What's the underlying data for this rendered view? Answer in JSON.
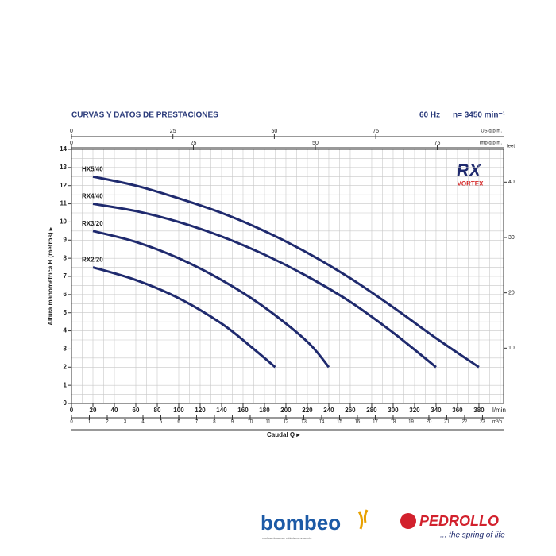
{
  "chart_data": {
    "type": "line",
    "title": "CURVAS Y DATOS DE PRESTACIONES",
    "frequency": "60 Hz",
    "speed": "n= 3450 min⁻¹",
    "y_label": "Altura manométrica H (metros) ▸",
    "x_label": "Caudal Q ▸",
    "x_unit": "l/min",
    "xlim": [
      0,
      403
    ],
    "xticks": [
      0,
      20,
      40,
      60,
      80,
      100,
      120,
      140,
      160,
      180,
      200,
      220,
      240,
      260,
      280,
      300,
      320,
      340,
      360,
      380
    ],
    "ylim": [
      0,
      14
    ],
    "yticks": [
      0,
      1,
      2,
      3,
      4,
      5,
      6,
      7,
      8,
      9,
      10,
      11,
      12,
      13,
      14
    ],
    "grid": true,
    "x_grid_step": 10,
    "y_grid_step": 0.5,
    "m3h_axis": {
      "label": "m³/h",
      "lim": [
        0,
        24.18
      ],
      "ticks": [
        0,
        1,
        2,
        3,
        4,
        5,
        6,
        7,
        8,
        9,
        10,
        11,
        12,
        13,
        14,
        15,
        16,
        17,
        18,
        19,
        20,
        21,
        22,
        23
      ]
    },
    "us_gpm_axis": {
      "label": "US g.p.m.",
      "lim": [
        0,
        106.5
      ],
      "ticks": [
        0,
        25,
        50,
        75
      ]
    },
    "imp_gpm_axis": {
      "label": "Imp g.p.m.",
      "lim": [
        0,
        88.6
      ],
      "ticks": [
        0,
        25,
        50,
        75
      ]
    },
    "feet_axis": {
      "label": "feet",
      "lim": [
        0,
        45.93
      ],
      "ticks": [
        10,
        20,
        30,
        40
      ]
    },
    "series": [
      {
        "name": "HX5/40",
        "color": "#1f2a6e",
        "x": [
          20,
          60,
          100,
          140,
          180,
          220,
          260,
          300,
          340,
          380
        ],
        "values": [
          12.5,
          12.0,
          11.3,
          10.5,
          9.5,
          8.3,
          6.9,
          5.3,
          3.6,
          2.0
        ]
      },
      {
        "name": "RX4/40",
        "color": "#1f2a6e",
        "x": [
          20,
          60,
          100,
          140,
          180,
          220,
          260,
          300,
          340
        ],
        "values": [
          11.0,
          10.6,
          10.0,
          9.2,
          8.2,
          7.0,
          5.6,
          3.9,
          2.0
        ]
      },
      {
        "name": "RX3/20",
        "color": "#1f2a6e",
        "x": [
          20,
          60,
          100,
          140,
          180,
          220,
          240
        ],
        "values": [
          9.5,
          8.9,
          8.0,
          6.8,
          5.3,
          3.4,
          2.0
        ]
      },
      {
        "name": "RX2/20",
        "color": "#1f2a6e",
        "x": [
          20,
          60,
          100,
          140,
          170,
          190
        ],
        "values": [
          7.5,
          6.8,
          5.8,
          4.4,
          3.0,
          2.0
        ]
      }
    ],
    "badge": {
      "main": "RX",
      "sub": "VORTEX"
    }
  },
  "logos": {
    "bombeo": "bombeo",
    "bombeo_tagline": "•online •bombas •eléctrico •servicio",
    "pedrollo": "PEDROLLO",
    "pedrollo_tagline": "... the spring of life"
  }
}
